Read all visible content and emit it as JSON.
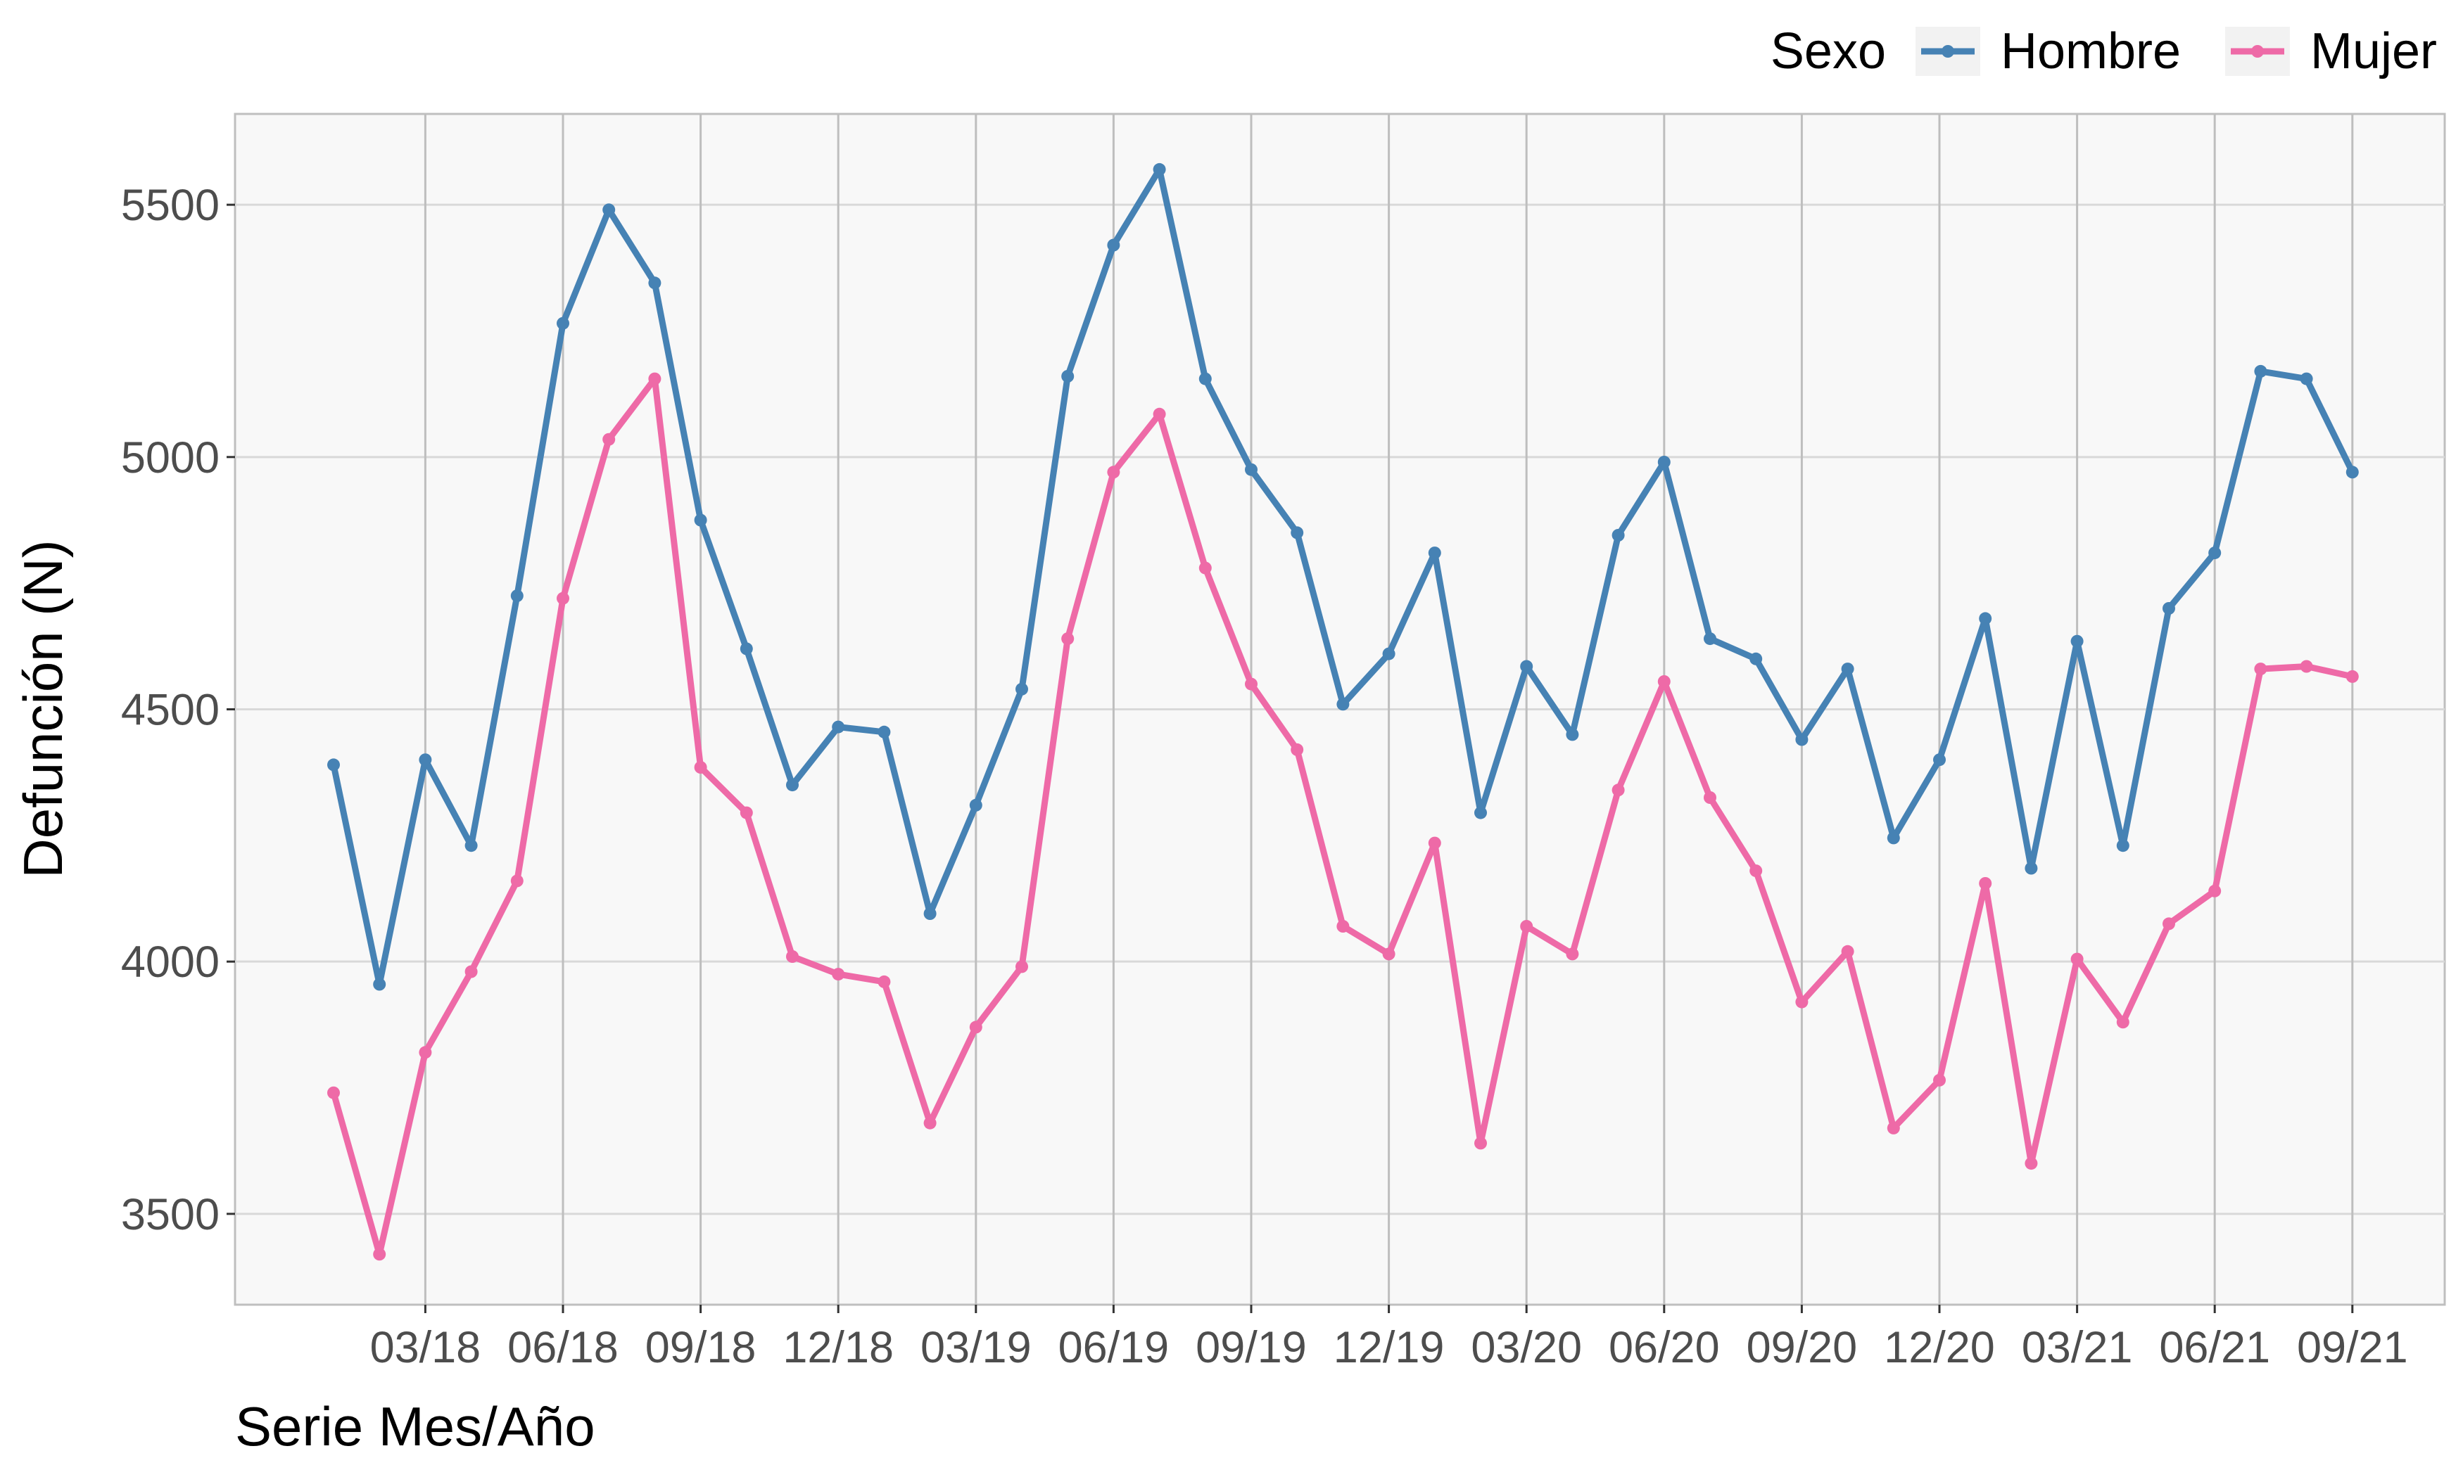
{
  "chart_data": {
    "type": "line",
    "xlabel": "Serie Mes/Año",
    "ylabel": "Defunción (N)",
    "ylim": [
      3320,
      5680
    ],
    "yticks": [
      3500,
      4000,
      4500,
      5000,
      5500
    ],
    "xtick_labels": [
      "03/18",
      "06/18",
      "09/18",
      "12/18",
      "03/19",
      "06/19",
      "09/19",
      "12/19",
      "03/20",
      "06/20",
      "09/20",
      "12/20",
      "03/21",
      "06/21",
      "09/21"
    ],
    "grid": true,
    "legend": {
      "title": "Sexo",
      "placement": "top-right"
    },
    "x": [
      "01/18",
      "02/18",
      "03/18",
      "04/18",
      "05/18",
      "06/18",
      "07/18",
      "08/18",
      "09/18",
      "10/18",
      "11/18",
      "12/18",
      "01/19",
      "02/19",
      "03/19",
      "04/19",
      "05/19",
      "06/19",
      "07/19",
      "08/19",
      "09/19",
      "10/19",
      "11/19",
      "12/19",
      "01/20",
      "02/20",
      "03/20",
      "04/20",
      "05/20",
      "06/20",
      "07/20",
      "08/20",
      "09/20",
      "10/20",
      "11/20",
      "12/20",
      "01/21",
      "02/21",
      "03/21",
      "04/21",
      "05/21",
      "06/21",
      "07/21",
      "08/21",
      "09/21"
    ],
    "series": [
      {
        "name": "Hombre",
        "color": "#4682B4",
        "values": [
          4390,
          3955,
          4400,
          4230,
          4725,
          5265,
          5490,
          5345,
          4875,
          4620,
          4350,
          4465,
          4455,
          4095,
          4310,
          4540,
          5160,
          5420,
          5570,
          5155,
          4975,
          4850,
          4510,
          4610,
          4810,
          4295,
          4585,
          4450,
          4845,
          4990,
          4640,
          4600,
          4440,
          4580,
          4245,
          4400,
          4680,
          4185,
          4635,
          4230,
          4700,
          4810,
          5170,
          5155,
          4970
        ]
      },
      {
        "name": "Mujer",
        "color": "#EE6AA7",
        "values": [
          3740,
          3420,
          3820,
          3980,
          4160,
          4720,
          5035,
          5155,
          4385,
          4295,
          4010,
          3975,
          3960,
          3680,
          3870,
          3990,
          4640,
          4970,
          5085,
          4780,
          4550,
          4420,
          4070,
          4015,
          4235,
          3640,
          4070,
          4015,
          4340,
          4555,
          4325,
          4180,
          3920,
          4020,
          3670,
          3765,
          4155,
          3600,
          4005,
          3880,
          4075,
          4140,
          4580,
          4585,
          4565
        ]
      }
    ]
  }
}
